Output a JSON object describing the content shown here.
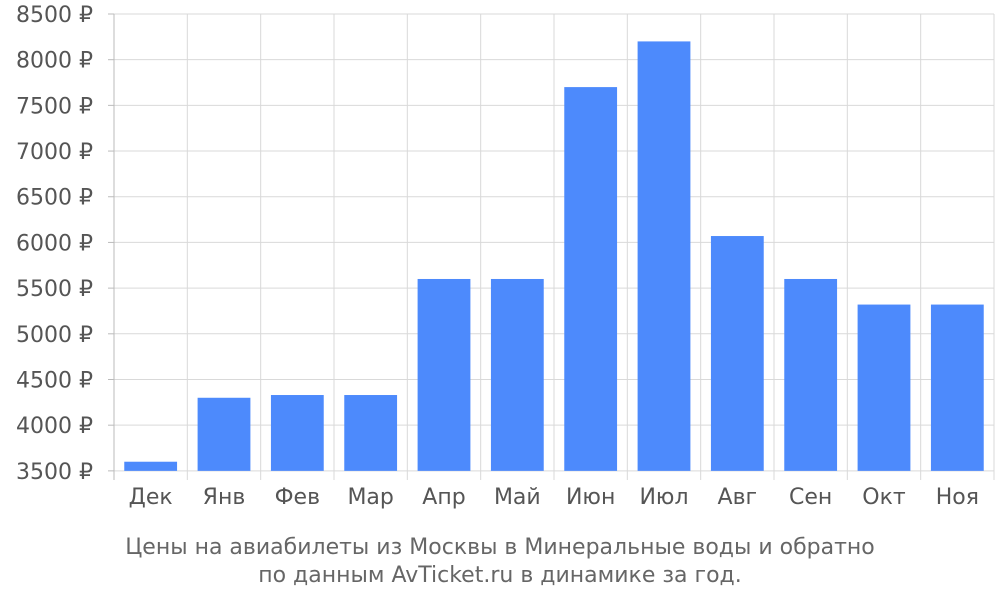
{
  "chart_data": {
    "type": "bar",
    "categories": [
      "Дек",
      "Янв",
      "Фев",
      "Мар",
      "Апр",
      "Май",
      "Июн",
      "Июл",
      "Авг",
      "Сен",
      "Окт",
      "Ноя"
    ],
    "values": [
      3600,
      4300,
      4330,
      4330,
      5600,
      5600,
      7700,
      8200,
      6070,
      5600,
      5320,
      5320
    ],
    "ylim": [
      3400,
      8500
    ],
    "yticks": [
      3500,
      4000,
      4500,
      5000,
      5500,
      6000,
      6500,
      7000,
      7500,
      8000,
      8500
    ],
    "currency_suffix": " ₽",
    "grid": true,
    "bar_color": "#4d8afc",
    "grid_color": "#d9d9d9",
    "caption_line1": "Цены на авиабилеты из Москвы в Минеральные воды и обратно",
    "caption_line2": "по данным AvTicket.ru в динамике за год."
  }
}
